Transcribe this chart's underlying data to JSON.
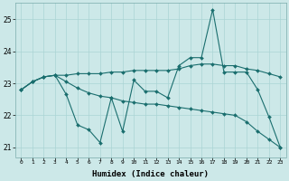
{
  "title": "",
  "xlabel": "Humidex (Indice chaleur)",
  "background_color": "#cce8e8",
  "line_color": "#1a6e6e",
  "x_values": [
    0,
    1,
    2,
    3,
    4,
    5,
    6,
    7,
    8,
    9,
    10,
    11,
    12,
    13,
    14,
    15,
    16,
    17,
    18,
    19,
    20,
    21,
    22,
    23
  ],
  "series1": [
    22.8,
    23.05,
    23.2,
    23.25,
    22.65,
    21.7,
    21.55,
    21.15,
    22.55,
    21.5,
    23.1,
    22.75,
    22.75,
    22.55,
    23.55,
    23.8,
    23.8,
    25.3,
    23.35,
    23.35,
    23.35,
    22.8,
    21.95,
    21.0
  ],
  "series2": [
    22.8,
    23.05,
    23.2,
    23.25,
    23.25,
    23.3,
    23.3,
    23.3,
    23.35,
    23.35,
    23.4,
    23.4,
    23.4,
    23.4,
    23.45,
    23.55,
    23.6,
    23.6,
    23.55,
    23.55,
    23.45,
    23.4,
    23.3,
    23.2
  ],
  "series3": [
    22.8,
    23.05,
    23.2,
    23.25,
    23.05,
    22.85,
    22.7,
    22.6,
    22.55,
    22.45,
    22.4,
    22.35,
    22.35,
    22.3,
    22.25,
    22.2,
    22.15,
    22.1,
    22.05,
    22.0,
    21.8,
    21.5,
    21.25,
    21.0
  ],
  "ylim": [
    20.7,
    25.5
  ],
  "yticks": [
    21,
    22,
    23,
    24,
    25
  ],
  "grid_color": "#aad4d4",
  "markersize": 2.0
}
